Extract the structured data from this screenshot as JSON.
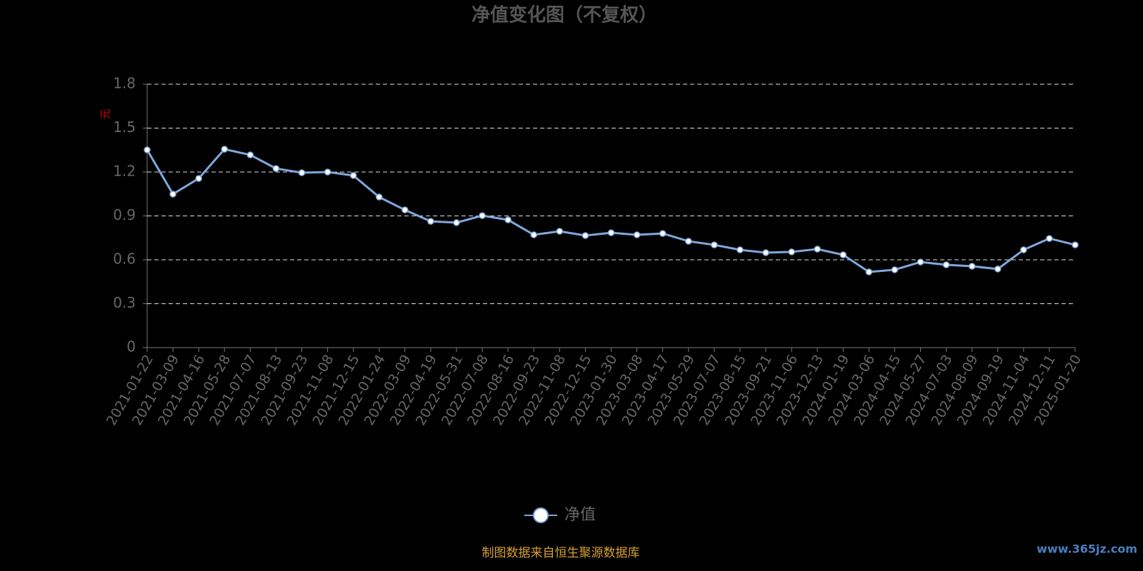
{
  "chart_data": {
    "type": "line",
    "title": "净值变化图（不复权）",
    "y_label": "元",
    "categories": [
      "2021-01-22",
      "2021-03-09",
      "2021-04-16",
      "2021-05-28",
      "2021-07-07",
      "2021-08-13",
      "2021-09-23",
      "2021-11-08",
      "2021-12-15",
      "2022-01-24",
      "2022-03-09",
      "2022-04-19",
      "2022-05-31",
      "2022-07-08",
      "2022-08-16",
      "2022-09-23",
      "2022-11-08",
      "2022-12-15",
      "2023-01-30",
      "2023-03-08",
      "2023-04-17",
      "2023-05-29",
      "2023-07-07",
      "2023-08-15",
      "2023-09-21",
      "2023-11-06",
      "2023-12-13",
      "2024-01-19",
      "2024-03-06",
      "2024-04-15",
      "2024-05-27",
      "2024-07-03",
      "2024-08-09",
      "2024-09-19",
      "2024-11-04",
      "2024-12-11",
      "2025-01-20"
    ],
    "series": [
      {
        "name": "净值",
        "color": "#7fa7dc",
        "values": [
          1.351,
          1.049,
          1.156,
          1.356,
          1.317,
          1.224,
          1.195,
          1.2,
          1.176,
          1.029,
          0.941,
          0.863,
          0.854,
          0.902,
          0.873,
          0.771,
          0.795,
          0.766,
          0.785,
          0.771,
          0.78,
          0.727,
          0.702,
          0.668,
          0.649,
          0.654,
          0.673,
          0.634,
          0.517,
          0.532,
          0.585,
          0.566,
          0.556,
          0.537,
          0.668,
          0.746,
          0.702
        ]
      }
    ],
    "ylim": [
      0,
      1.8
    ],
    "yticks": [
      0,
      0.3,
      0.6,
      0.9,
      1.2,
      1.5,
      1.8
    ],
    "grid": true,
    "legend": "bottom",
    "source": "制图数据来自恒生聚源数据库",
    "watermark": "www.365jz.com"
  }
}
